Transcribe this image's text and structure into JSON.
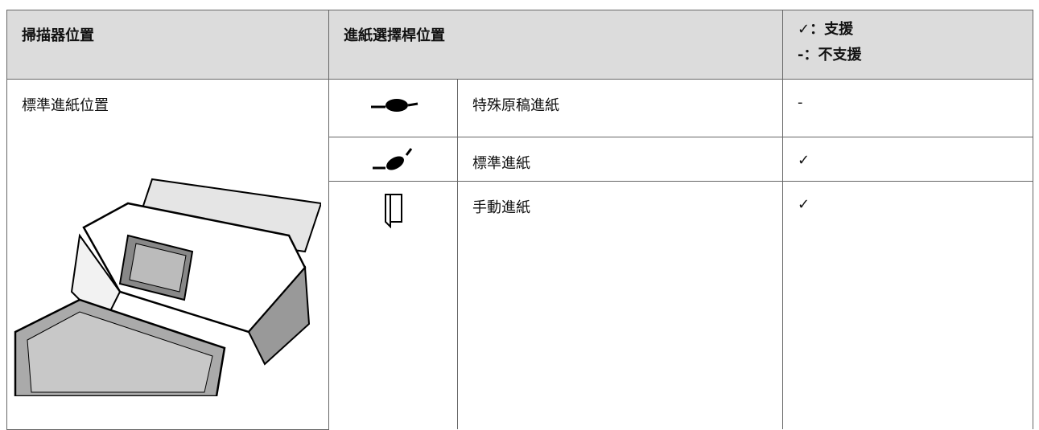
{
  "header": {
    "scanner_position": "掃描器位置",
    "lever_position": "進紙選擇桿位置",
    "legend": [
      "✓：支援",
      "-：不支援"
    ]
  },
  "scanner_position": "標準進紙位置",
  "rows": [
    {
      "label": "特殊原稿進紙",
      "support": "-"
    },
    {
      "label": "標準進紙",
      "support": "✓"
    },
    {
      "label": "手動進紙",
      "support": "✓"
    }
  ]
}
